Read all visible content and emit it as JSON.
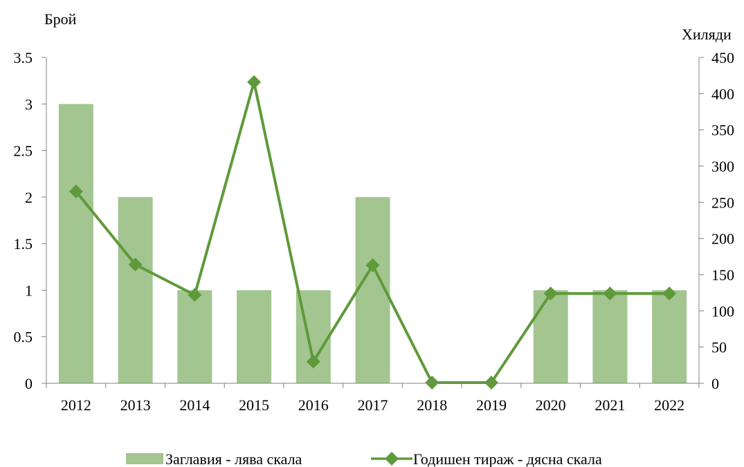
{
  "chart_data": {
    "type": "bar+line",
    "title": "",
    "ylabel_left": "Брой",
    "ylabel_right": "Хиляди",
    "categories": [
      "2012",
      "2013",
      "2014",
      "2015",
      "2016",
      "2017",
      "2018",
      "2019",
      "2020",
      "2021",
      "2022"
    ],
    "series": [
      {
        "name": "Заглавия - лява скала",
        "type": "bar",
        "axis": "left",
        "color": "#a3c58f",
        "values": [
          3,
          2,
          1,
          1,
          1,
          2,
          0,
          0,
          1,
          1,
          1
        ]
      },
      {
        "name": "Годишен тираж - дясна скала",
        "type": "line",
        "axis": "right",
        "marker": "diamond",
        "color": "#5e9a3a",
        "values": [
          265,
          164,
          122,
          416,
          30,
          163,
          1,
          1,
          124,
          124,
          124
        ]
      }
    ],
    "ylim_left": [
      0,
      3.5
    ],
    "yticks_left": [
      "0",
      "0.5",
      "1",
      "1.5",
      "2",
      "2.5",
      "3",
      "3.5"
    ],
    "ylim_right": [
      0,
      450
    ],
    "yticks_right": [
      "0",
      "50",
      "100",
      "150",
      "200",
      "250",
      "300",
      "350",
      "400",
      "450"
    ],
    "grid": false,
    "legend_position": "bottom"
  }
}
